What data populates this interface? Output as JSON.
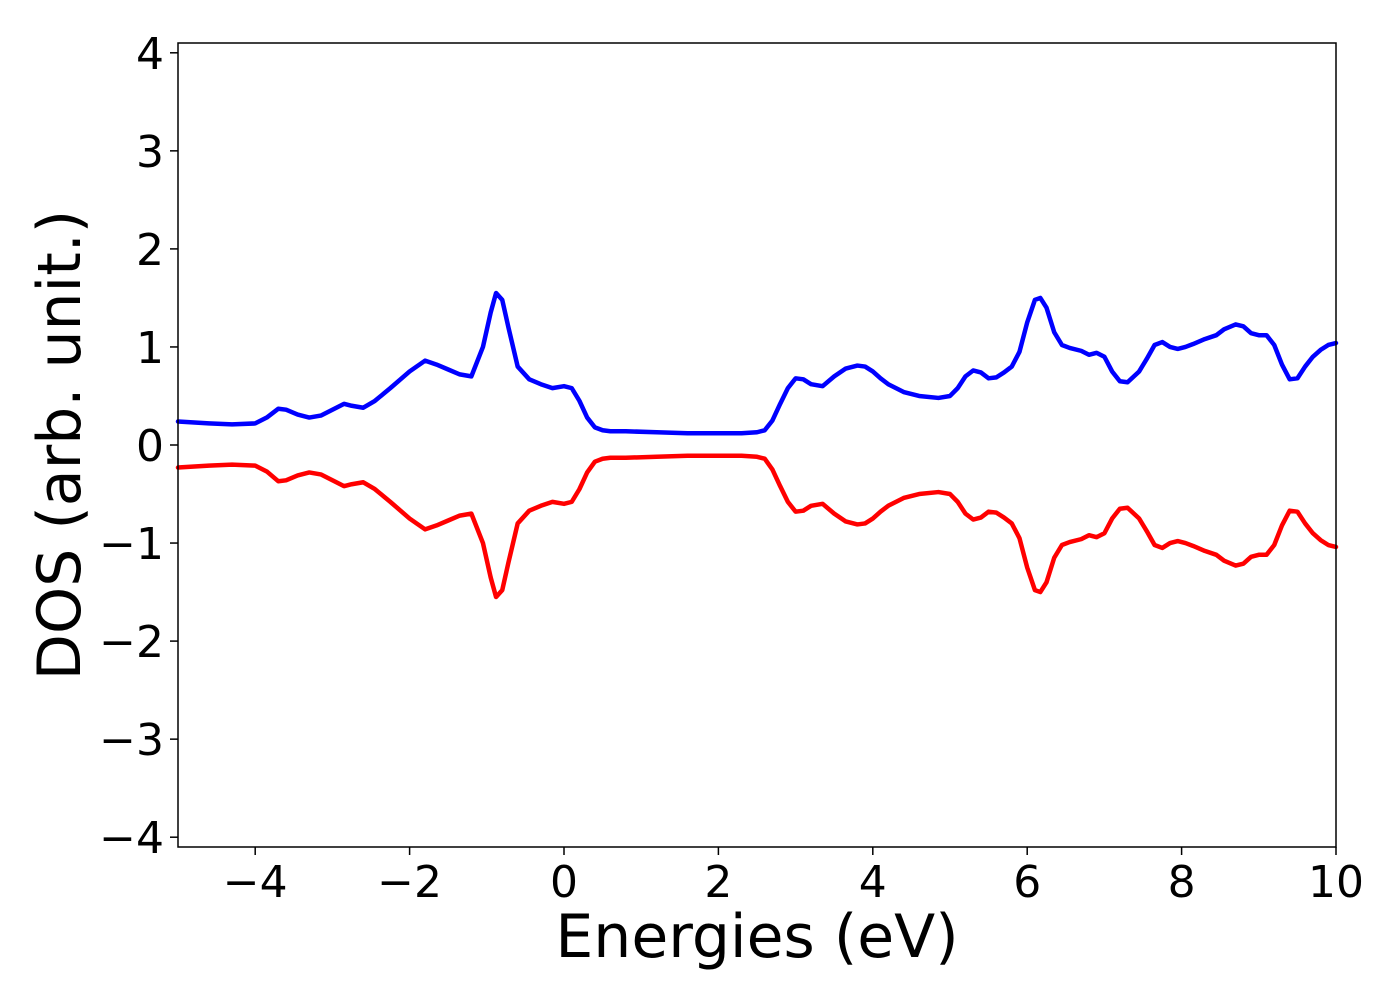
{
  "chart_data": {
    "type": "line",
    "xlabel": "Energies (eV)",
    "ylabel": "DOS (arb. unit.)",
    "xlim": [
      -5,
      10
    ],
    "ylim": [
      -4.1,
      4.1
    ],
    "xticks": [
      -4,
      -2,
      0,
      2,
      4,
      6,
      8,
      10
    ],
    "yticks": [
      -4,
      -3,
      -2,
      -1,
      0,
      1,
      2,
      3,
      4
    ],
    "xtick_labels": [
      "−4",
      "−2",
      "0",
      "2",
      "4",
      "6",
      "8",
      "10"
    ],
    "ytick_labels": [
      "−4",
      "−3",
      "−2",
      "−1",
      "0",
      "1",
      "2",
      "3",
      "4"
    ],
    "grid": false,
    "legend": "none",
    "series": [
      {
        "color": "#0000ff",
        "x": [
          -5,
          -4.6,
          -4.3,
          -4.0,
          -3.85,
          -3.7,
          -3.6,
          -3.45,
          -3.3,
          -3.15,
          -3.0,
          -2.85,
          -2.75,
          -2.6,
          -2.45,
          -2.25,
          -2.0,
          -1.8,
          -1.65,
          -1.5,
          -1.35,
          -1.2,
          -1.05,
          -0.95,
          -0.88,
          -0.8,
          -0.72,
          -0.6,
          -0.45,
          -0.3,
          -0.15,
          0.0,
          0.1,
          0.2,
          0.3,
          0.4,
          0.5,
          0.6,
          0.8,
          1.2,
          1.6,
          2.0,
          2.3,
          2.5,
          2.6,
          2.7,
          2.8,
          2.9,
          3.0,
          3.1,
          3.2,
          3.35,
          3.5,
          3.65,
          3.8,
          3.9,
          4.0,
          4.1,
          4.2,
          4.4,
          4.6,
          4.85,
          5.0,
          5.1,
          5.2,
          5.3,
          5.4,
          5.5,
          5.6,
          5.7,
          5.8,
          5.9,
          6.0,
          6.1,
          6.17,
          6.25,
          6.35,
          6.45,
          6.55,
          6.7,
          6.8,
          6.9,
          7.0,
          7.1,
          7.2,
          7.3,
          7.45,
          7.55,
          7.65,
          7.75,
          7.85,
          7.95,
          8.05,
          8.15,
          8.3,
          8.45,
          8.55,
          8.7,
          8.8,
          8.9,
          9.0,
          9.1,
          9.2,
          9.3,
          9.4,
          9.5,
          9.6,
          9.7,
          9.8,
          9.9,
          10.0
        ],
        "y": [
          0.24,
          0.22,
          0.21,
          0.22,
          0.28,
          0.37,
          0.36,
          0.31,
          0.28,
          0.3,
          0.36,
          0.42,
          0.4,
          0.38,
          0.45,
          0.58,
          0.75,
          0.86,
          0.82,
          0.77,
          0.72,
          0.7,
          1.0,
          1.35,
          1.55,
          1.48,
          1.2,
          0.8,
          0.67,
          0.62,
          0.58,
          0.6,
          0.58,
          0.45,
          0.28,
          0.18,
          0.15,
          0.14,
          0.14,
          0.13,
          0.12,
          0.12,
          0.12,
          0.13,
          0.15,
          0.25,
          0.42,
          0.58,
          0.68,
          0.67,
          0.62,
          0.6,
          0.7,
          0.78,
          0.81,
          0.8,
          0.75,
          0.68,
          0.62,
          0.54,
          0.5,
          0.48,
          0.5,
          0.58,
          0.7,
          0.76,
          0.74,
          0.68,
          0.69,
          0.74,
          0.8,
          0.95,
          1.25,
          1.48,
          1.5,
          1.4,
          1.15,
          1.02,
          0.99,
          0.96,
          0.92,
          0.94,
          0.9,
          0.75,
          0.65,
          0.64,
          0.75,
          0.88,
          1.02,
          1.05,
          1.0,
          0.98,
          1.0,
          1.03,
          1.08,
          1.12,
          1.18,
          1.23,
          1.21,
          1.14,
          1.12,
          1.12,
          1.02,
          0.82,
          0.67,
          0.68,
          0.8,
          0.9,
          0.97,
          1.02,
          1.04
        ]
      },
      {
        "color": "#ff0000",
        "x": [
          -5,
          -4.6,
          -4.3,
          -4.0,
          -3.85,
          -3.7,
          -3.6,
          -3.45,
          -3.3,
          -3.15,
          -3.0,
          -2.85,
          -2.75,
          -2.6,
          -2.45,
          -2.25,
          -2.0,
          -1.8,
          -1.65,
          -1.5,
          -1.35,
          -1.2,
          -1.05,
          -0.95,
          -0.88,
          -0.8,
          -0.72,
          -0.6,
          -0.45,
          -0.3,
          -0.15,
          0.0,
          0.1,
          0.2,
          0.3,
          0.4,
          0.5,
          0.6,
          0.8,
          1.2,
          1.6,
          2.0,
          2.3,
          2.5,
          2.6,
          2.7,
          2.8,
          2.9,
          3.0,
          3.1,
          3.2,
          3.35,
          3.5,
          3.65,
          3.8,
          3.9,
          4.0,
          4.1,
          4.2,
          4.4,
          4.6,
          4.85,
          5.0,
          5.1,
          5.2,
          5.3,
          5.4,
          5.5,
          5.6,
          5.7,
          5.8,
          5.9,
          6.0,
          6.1,
          6.17,
          6.25,
          6.35,
          6.45,
          6.55,
          6.7,
          6.8,
          6.9,
          7.0,
          7.1,
          7.2,
          7.3,
          7.45,
          7.55,
          7.65,
          7.75,
          7.85,
          7.95,
          8.05,
          8.15,
          8.3,
          8.45,
          8.55,
          8.7,
          8.8,
          8.9,
          9.0,
          9.1,
          9.2,
          9.3,
          9.4,
          9.5,
          9.6,
          9.7,
          9.8,
          9.9,
          10.0
        ],
        "y": [
          -0.23,
          -0.21,
          -0.2,
          -0.21,
          -0.27,
          -0.37,
          -0.36,
          -0.31,
          -0.28,
          -0.3,
          -0.36,
          -0.42,
          -0.4,
          -0.38,
          -0.45,
          -0.58,
          -0.75,
          -0.86,
          -0.82,
          -0.77,
          -0.72,
          -0.7,
          -1.0,
          -1.35,
          -1.55,
          -1.48,
          -1.2,
          -0.8,
          -0.67,
          -0.62,
          -0.58,
          -0.6,
          -0.58,
          -0.45,
          -0.28,
          -0.17,
          -0.14,
          -0.13,
          -0.13,
          -0.12,
          -0.11,
          -0.11,
          -0.11,
          -0.12,
          -0.14,
          -0.25,
          -0.42,
          -0.58,
          -0.68,
          -0.67,
          -0.62,
          -0.6,
          -0.7,
          -0.78,
          -0.81,
          -0.8,
          -0.75,
          -0.68,
          -0.62,
          -0.54,
          -0.5,
          -0.48,
          -0.5,
          -0.58,
          -0.7,
          -0.76,
          -0.74,
          -0.68,
          -0.69,
          -0.74,
          -0.8,
          -0.95,
          -1.25,
          -1.48,
          -1.5,
          -1.4,
          -1.15,
          -1.02,
          -0.99,
          -0.96,
          -0.92,
          -0.94,
          -0.9,
          -0.75,
          -0.65,
          -0.64,
          -0.75,
          -0.88,
          -1.02,
          -1.05,
          -1.0,
          -0.98,
          -1.0,
          -1.03,
          -1.08,
          -1.12,
          -1.18,
          -1.23,
          -1.21,
          -1.14,
          -1.12,
          -1.12,
          -1.02,
          -0.82,
          -0.67,
          -0.68,
          -0.8,
          -0.9,
          -0.97,
          -1.02,
          -1.04
        ]
      }
    ]
  }
}
